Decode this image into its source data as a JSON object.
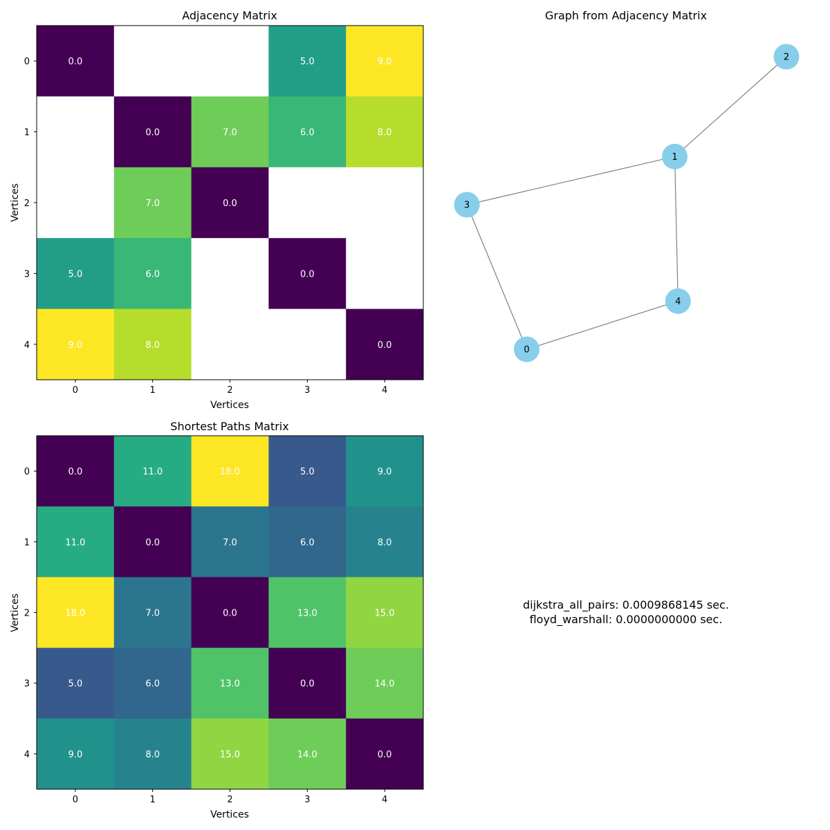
{
  "chart_data": [
    {
      "type": "heatmap",
      "title": "Adjacency Matrix",
      "xlabel": "Vertices",
      "ylabel": "Vertices",
      "x_ticks": [
        "0",
        "1",
        "2",
        "3",
        "4"
      ],
      "y_ticks": [
        "0",
        "1",
        "2",
        "3",
        "4"
      ],
      "colormap": "viridis",
      "vmin": 0,
      "vmax": 9,
      "missing_color": "#ffffff",
      "values": [
        [
          0.0,
          null,
          null,
          5.0,
          9.0
        ],
        [
          null,
          0.0,
          7.0,
          6.0,
          8.0
        ],
        [
          null,
          7.0,
          0.0,
          null,
          null
        ],
        [
          5.0,
          6.0,
          null,
          0.0,
          null
        ],
        [
          9.0,
          8.0,
          null,
          null,
          0.0
        ]
      ],
      "cell_labels": [
        [
          "0.0",
          "",
          "",
          "5.0",
          "9.0"
        ],
        [
          "",
          "0.0",
          "7.0",
          "6.0",
          "8.0"
        ],
        [
          "",
          "7.0",
          "0.0",
          "",
          ""
        ],
        [
          "5.0",
          "6.0",
          "",
          "0.0",
          ""
        ],
        [
          "9.0",
          "8.0",
          "",
          "",
          "0.0"
        ]
      ]
    },
    {
      "type": "graph",
      "title": "Graph from Adjacency Matrix",
      "node_color": "#87ceeb",
      "edge_color": "#808080",
      "nodes": [
        {
          "id": "0",
          "x": 0.0,
          "y": 0.0
        },
        {
          "id": "1",
          "x": 0.448,
          "y": 0.616
        },
        {
          "id": "2",
          "x": 0.786,
          "y": 0.935
        },
        {
          "id": "3",
          "x": -0.181,
          "y": 0.462
        },
        {
          "id": "4",
          "x": 0.458,
          "y": 0.154
        }
      ],
      "edges": [
        [
          "0",
          "3"
        ],
        [
          "0",
          "4"
        ],
        [
          "1",
          "2"
        ],
        [
          "1",
          "3"
        ],
        [
          "1",
          "4"
        ]
      ]
    },
    {
      "type": "heatmap",
      "title": "Shortest Paths Matrix",
      "xlabel": "Vertices",
      "ylabel": "Vertices",
      "x_ticks": [
        "0",
        "1",
        "2",
        "3",
        "4"
      ],
      "y_ticks": [
        "0",
        "1",
        "2",
        "3",
        "4"
      ],
      "colormap": "viridis",
      "vmin": 0,
      "vmax": 18,
      "values": [
        [
          0.0,
          11.0,
          18.0,
          5.0,
          9.0
        ],
        [
          11.0,
          0.0,
          7.0,
          6.0,
          8.0
        ],
        [
          18.0,
          7.0,
          0.0,
          13.0,
          15.0
        ],
        [
          5.0,
          6.0,
          13.0,
          0.0,
          14.0
        ],
        [
          9.0,
          8.0,
          15.0,
          14.0,
          0.0
        ]
      ],
      "cell_labels": [
        [
          "0.0",
          "11.0",
          "18.0",
          "5.0",
          "9.0"
        ],
        [
          "11.0",
          "0.0",
          "7.0",
          "6.0",
          "8.0"
        ],
        [
          "18.0",
          "7.0",
          "0.0",
          "13.0",
          "15.0"
        ],
        [
          "5.0",
          "6.0",
          "13.0",
          "0.0",
          "14.0"
        ],
        [
          "9.0",
          "8.0",
          "15.0",
          "14.0",
          "0.0"
        ]
      ]
    }
  ],
  "timings": {
    "line1": "dijkstra_all_pairs: 0.0009868145 sec.",
    "line2": "floyd_warshall: 0.0000000000 sec."
  }
}
